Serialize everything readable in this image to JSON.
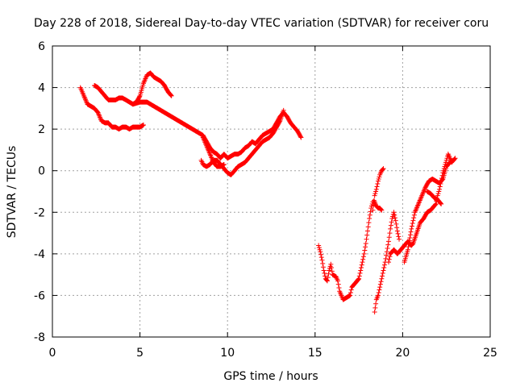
{
  "chart_data": {
    "type": "scatter",
    "title": "Day 228 of 2018, Sidereal Day-to-day VTEC variation (SDTVAR) for receiver coru",
    "xlabel": "GPS time / hours",
    "ylabel": "SDTVAR / TECUs",
    "xlim": [
      0,
      25
    ],
    "ylim": [
      -8,
      6
    ],
    "xticks": [
      "0",
      "5",
      "10",
      "15",
      "20",
      "25"
    ],
    "yticks": [
      "-8",
      "-6",
      "-4",
      "-2",
      "0",
      "2",
      "4",
      "6"
    ],
    "grid": true,
    "marker": "+",
    "series": [
      {
        "color": "#ff0000",
        "segments": [
          [
            [
              1.6,
              4.0
            ],
            [
              1.7,
              3.8
            ],
            [
              1.8,
              3.6
            ],
            [
              2.0,
              3.2
            ],
            [
              2.2,
              3.1
            ],
            [
              2.4,
              3.0
            ],
            [
              2.6,
              2.8
            ],
            [
              2.8,
              2.4
            ],
            [
              3.0,
              2.3
            ],
            [
              3.2,
              2.3
            ],
            [
              3.4,
              2.1
            ],
            [
              3.6,
              2.1
            ],
            [
              3.8,
              2.0
            ],
            [
              4.0,
              2.1
            ],
            [
              4.2,
              2.1
            ],
            [
              4.4,
              2.0
            ],
            [
              4.6,
              2.1
            ],
            [
              4.8,
              2.1
            ],
            [
              5.0,
              2.1
            ],
            [
              5.2,
              2.2
            ]
          ],
          [
            [
              2.4,
              4.1
            ],
            [
              2.6,
              4.0
            ],
            [
              2.8,
              3.8
            ],
            [
              3.0,
              3.6
            ],
            [
              3.2,
              3.4
            ],
            [
              3.4,
              3.4
            ],
            [
              3.6,
              3.4
            ],
            [
              3.8,
              3.5
            ],
            [
              4.0,
              3.5
            ],
            [
              4.2,
              3.4
            ],
            [
              4.4,
              3.3
            ],
            [
              4.6,
              3.2
            ],
            [
              4.8,
              3.3
            ],
            [
              5.0,
              3.6
            ],
            [
              5.2,
              4.2
            ],
            [
              5.4,
              4.6
            ],
            [
              5.6,
              4.7
            ],
            [
              5.8,
              4.5
            ],
            [
              6.0,
              4.4
            ],
            [
              6.2,
              4.3
            ],
            [
              6.4,
              4.1
            ],
            [
              6.6,
              3.8
            ],
            [
              6.8,
              3.6
            ]
          ],
          [
            [
              4.6,
              3.2
            ],
            [
              5.0,
              3.3
            ],
            [
              5.4,
              3.3
            ],
            [
              5.8,
              3.1
            ],
            [
              6.2,
              2.9
            ],
            [
              6.6,
              2.7
            ],
            [
              7.0,
              2.5
            ],
            [
              7.4,
              2.3
            ],
            [
              7.8,
              2.1
            ],
            [
              8.2,
              1.9
            ],
            [
              8.6,
              1.7
            ],
            [
              8.8,
              1.4
            ],
            [
              9.0,
              1.1
            ],
            [
              9.2,
              0.9
            ],
            [
              9.4,
              0.8
            ],
            [
              9.6,
              0.6
            ],
            [
              9.8,
              0.8
            ],
            [
              10.0,
              0.6
            ],
            [
              10.2,
              0.7
            ],
            [
              10.4,
              0.8
            ],
            [
              10.6,
              0.8
            ],
            [
              10.8,
              0.9
            ],
            [
              11.0,
              1.1
            ],
            [
              11.2,
              1.2
            ],
            [
              11.4,
              1.4
            ],
            [
              11.6,
              1.3
            ],
            [
              11.8,
              1.5
            ],
            [
              12.0,
              1.7
            ],
            [
              12.2,
              1.8
            ],
            [
              12.4,
              1.9
            ],
            [
              12.6,
              2.0
            ],
            [
              12.8,
              2.3
            ],
            [
              13.0,
              2.6
            ],
            [
              13.2,
              2.8
            ],
            [
              13.4,
              2.6
            ],
            [
              13.6,
              2.3
            ],
            [
              13.8,
              2.1
            ],
            [
              14.0,
              1.9
            ],
            [
              14.2,
              1.6
            ]
          ],
          [
            [
              8.5,
              0.5
            ],
            [
              8.6,
              0.3
            ],
            [
              8.8,
              0.2
            ],
            [
              9.0,
              0.3
            ],
            [
              9.2,
              0.5
            ],
            [
              9.4,
              0.5
            ],
            [
              9.6,
              0.3
            ],
            [
              9.8,
              0.1
            ],
            [
              10.0,
              -0.1
            ],
            [
              10.2,
              -0.2
            ],
            [
              10.4,
              0.0
            ],
            [
              10.6,
              0.2
            ],
            [
              10.8,
              0.3
            ],
            [
              11.0,
              0.4
            ],
            [
              11.2,
              0.6
            ],
            [
              11.4,
              0.8
            ],
            [
              11.6,
              1.0
            ],
            [
              11.8,
              1.2
            ],
            [
              12.0,
              1.4
            ],
            [
              12.2,
              1.5
            ],
            [
              12.4,
              1.6
            ],
            [
              12.6,
              1.8
            ],
            [
              12.8,
              2.1
            ],
            [
              13.0,
              2.4
            ],
            [
              13.2,
              2.9
            ]
          ],
          [
            [
              8.6,
              1.6
            ],
            [
              8.8,
              1.2
            ],
            [
              9.0,
              0.8
            ],
            [
              9.2,
              0.4
            ],
            [
              9.4,
              0.2
            ],
            [
              9.6,
              0.2
            ],
            [
              9.8,
              0.3
            ]
          ],
          [
            [
              15.2,
              -3.6
            ],
            [
              15.3,
              -3.9
            ],
            [
              15.4,
              -4.3
            ],
            [
              15.5,
              -4.8
            ],
            [
              15.6,
              -5.2
            ],
            [
              15.7,
              -5.3
            ],
            [
              15.8,
              -4.8
            ],
            [
              15.9,
              -4.5
            ],
            [
              16.0,
              -5.0
            ],
            [
              16.2,
              -5.1
            ],
            [
              16.3,
              -5.3
            ],
            [
              16.4,
              -5.8
            ],
            [
              16.5,
              -6.0
            ],
            [
              16.6,
              -6.2
            ],
            [
              16.8,
              -6.1
            ],
            [
              17.0,
              -6.0
            ],
            [
              17.1,
              -5.6
            ],
            [
              17.3,
              -5.4
            ],
            [
              17.5,
              -5.2
            ],
            [
              17.6,
              -4.8
            ],
            [
              17.7,
              -4.4
            ],
            [
              17.8,
              -4.0
            ],
            [
              17.9,
              -3.5
            ],
            [
              18.0,
              -2.9
            ],
            [
              18.1,
              -2.3
            ],
            [
              18.2,
              -1.8
            ],
            [
              18.3,
              -1.5
            ],
            [
              18.4,
              -1.5
            ],
            [
              18.5,
              -1.7
            ],
            [
              18.6,
              -1.8
            ],
            [
              18.7,
              -1.8
            ],
            [
              18.8,
              -1.9
            ]
          ],
          [
            [
              18.3,
              -1.9
            ],
            [
              18.4,
              -1.2
            ],
            [
              18.5,
              -0.9
            ],
            [
              18.6,
              -0.5
            ],
            [
              18.7,
              -0.2
            ],
            [
              18.8,
              0.0
            ],
            [
              18.9,
              0.1
            ]
          ],
          [
            [
              18.4,
              -6.8
            ],
            [
              18.5,
              -6.2
            ],
            [
              18.6,
              -6.0
            ],
            [
              18.7,
              -5.6
            ],
            [
              18.8,
              -5.2
            ],
            [
              18.9,
              -4.8
            ],
            [
              19.0,
              -4.4
            ],
            [
              19.1,
              -3.9
            ],
            [
              19.2,
              -3.4
            ],
            [
              19.3,
              -2.8
            ],
            [
              19.4,
              -2.3
            ],
            [
              19.5,
              -2.0
            ],
            [
              19.6,
              -2.4
            ],
            [
              19.7,
              -2.9
            ],
            [
              19.8,
              -3.3
            ]
          ],
          [
            [
              19.2,
              -4.4
            ],
            [
              19.3,
              -4.0
            ],
            [
              19.5,
              -3.8
            ],
            [
              19.7,
              -4.0
            ],
            [
              19.9,
              -3.8
            ],
            [
              20.1,
              -3.6
            ],
            [
              20.3,
              -3.4
            ],
            [
              20.5,
              -3.6
            ],
            [
              20.6,
              -3.5
            ],
            [
              20.8,
              -3.0
            ],
            [
              21.0,
              -2.5
            ],
            [
              21.2,
              -2.3
            ],
            [
              21.4,
              -2.0
            ],
            [
              21.6,
              -1.9
            ],
            [
              21.8,
              -1.7
            ],
            [
              21.9,
              -1.6
            ],
            [
              22.0,
              -1.2
            ],
            [
              22.1,
              -0.9
            ],
            [
              22.2,
              -0.5
            ],
            [
              22.3,
              -0.1
            ],
            [
              22.4,
              0.2
            ],
            [
              22.5,
              0.5
            ],
            [
              22.6,
              0.8
            ],
            [
              22.7,
              0.6
            ],
            [
              22.8,
              0.4
            ],
            [
              22.9,
              0.5
            ]
          ],
          [
            [
              20.1,
              -4.4
            ],
            [
              20.3,
              -3.8
            ],
            [
              20.5,
              -2.8
            ],
            [
              20.6,
              -2.4
            ],
            [
              20.7,
              -2.0
            ],
            [
              20.9,
              -1.6
            ],
            [
              21.1,
              -1.2
            ],
            [
              21.3,
              -0.8
            ],
            [
              21.5,
              -0.5
            ],
            [
              21.7,
              -0.4
            ],
            [
              21.9,
              -0.5
            ],
            [
              22.1,
              -0.6
            ],
            [
              22.3,
              -0.4
            ],
            [
              22.5,
              0.2
            ],
            [
              22.7,
              0.4
            ],
            [
              22.9,
              0.5
            ],
            [
              23.0,
              0.6
            ]
          ],
          [
            [
              21.4,
              -1.0
            ],
            [
              21.6,
              -1.1
            ],
            [
              21.8,
              -1.3
            ],
            [
              22.0,
              -1.4
            ],
            [
              22.2,
              -1.6
            ]
          ]
        ]
      }
    ]
  }
}
